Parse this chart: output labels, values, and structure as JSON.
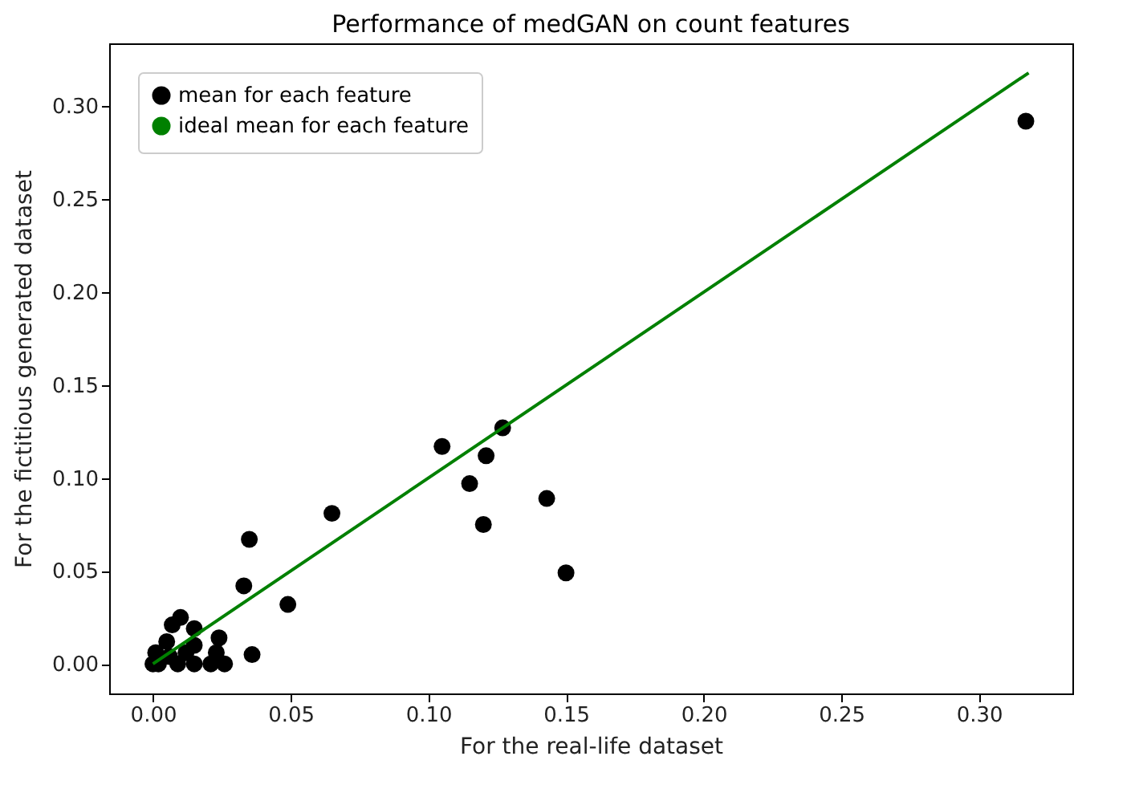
{
  "chart_data": {
    "type": "scatter",
    "title": "Performance of medGAN on count features",
    "xlabel": "For the real-life dataset",
    "ylabel": "For the fictitious generated dataset",
    "xlim": [
      -0.0159,
      0.3339
    ],
    "ylim": [
      -0.0159,
      0.3339
    ],
    "xticks": [
      {
        "value": 0,
        "label": "0.00"
      },
      {
        "value": 0.05,
        "label": "0.05"
      },
      {
        "value": 0.1,
        "label": "0.10"
      },
      {
        "value": 0.15,
        "label": "0.15"
      },
      {
        "value": 0.2,
        "label": "0.20"
      },
      {
        "value": 0.25,
        "label": "0.25"
      },
      {
        "value": 0.3,
        "label": "0.30"
      }
    ],
    "yticks": [
      {
        "value": 0,
        "label": "0.00"
      },
      {
        "value": 0.05,
        "label": "0.05"
      },
      {
        "value": 0.1,
        "label": "0.10"
      },
      {
        "value": 0.15,
        "label": "0.15"
      },
      {
        "value": 0.2,
        "label": "0.20"
      },
      {
        "value": 0.25,
        "label": "0.25"
      },
      {
        "value": 0.3,
        "label": "0.30"
      }
    ],
    "grid": false,
    "legend": "top left",
    "series": [
      {
        "name": "mean for each feature",
        "color": "#000000",
        "marker": "circle",
        "x": [
          0.317,
          0.127,
          0.105,
          0.121,
          0.115,
          0.143,
          0.12,
          0.15,
          0.065,
          0.035,
          0.033,
          0.049,
          0.036,
          0.024,
          0.01,
          0.007,
          0.015,
          0.015,
          0.005,
          0.001,
          0,
          0.002,
          0.009,
          0.015,
          0.021,
          0.026,
          0.023,
          0.012,
          0.006
        ],
        "values": [
          0.292,
          0.127,
          0.117,
          0.112,
          0.097,
          0.089,
          0.075,
          0.049,
          0.081,
          0.067,
          0.042,
          0.032,
          0.005,
          0.014,
          0.025,
          0.021,
          0.019,
          0.01,
          0.012,
          0.006,
          0,
          0,
          0,
          0,
          0,
          0,
          0.006,
          0.006,
          0.004
        ]
      },
      {
        "name": "ideal mean for each feature",
        "color": "#008000",
        "type": "line",
        "line_style": "solid",
        "x": [
          0,
          0.318
        ],
        "values": [
          0,
          0.318
        ]
      }
    ]
  }
}
